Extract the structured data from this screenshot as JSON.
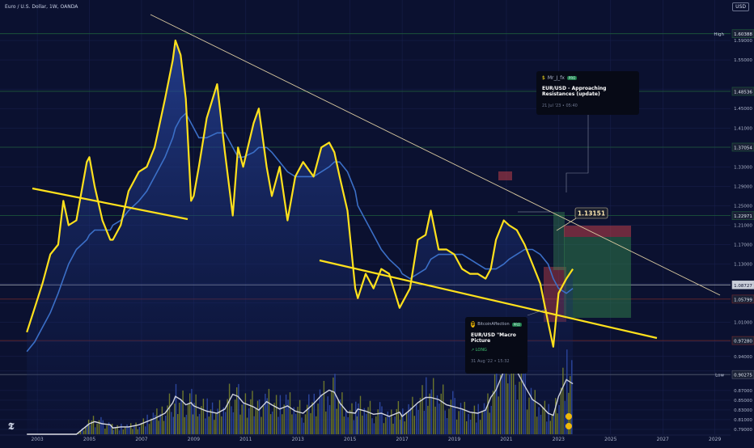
{
  "header": {
    "symbol_line": "Euro / U.S. Dollar, 1W, OANDA",
    "currency": "USD"
  },
  "price_axis": {
    "ticks": [
      "1.59000",
      "1.55000",
      "1.49000",
      "1.45000",
      "1.41000",
      "1.37000",
      "1.33000",
      "1.29000",
      "1.25000",
      "1.21000",
      "1.17000",
      "1.13000",
      "1.09000",
      "1.05000",
      "1.01000",
      "0.97000",
      "0.94000",
      "0.91000",
      "0.87000",
      "0.85000",
      "0.83000",
      "0.81000",
      "0.79000"
    ],
    "ymin": 0.78,
    "ymax": 1.62
  },
  "markers": [
    {
      "label": "High",
      "value": "1.60388",
      "color": "#1e5c3a"
    },
    {
      "label": "",
      "value": "1.48536",
      "color": "#1e5c3a"
    },
    {
      "label": "",
      "value": "1.37054",
      "color": "#1e5c3a"
    },
    {
      "label": "",
      "value": "1.22971",
      "color": "#1e5c3a"
    },
    {
      "label": "",
      "value": "1.08727",
      "color": "#b7bcc8"
    },
    {
      "label": "",
      "value": "1.05799",
      "color": "#7a2a2a"
    },
    {
      "label": "",
      "value": "0.97280",
      "color": "#7a2a2a"
    },
    {
      "label": "Low",
      "value": "0.90275",
      "color": "#555c70"
    }
  ],
  "time_axis": {
    "labels": [
      "2003",
      "2005",
      "2007",
      "2009",
      "2011",
      "2013",
      "2015",
      "2017",
      "2019",
      "2021",
      "2023",
      "2025",
      "2027",
      "2029"
    ],
    "start_year": 2002.5,
    "end_year": 2029.6
  },
  "price_tag": "1.13151",
  "idea_top": {
    "user": "Mr_J_fx",
    "badge": "PRO",
    "title": "EUR/USD - Approaching Resistances (update)",
    "date": "21 Jul '23 • 05:40"
  },
  "idea_bottom": {
    "user": "BitcoinAffection",
    "badge": "PRO",
    "title": "EUR/USD \"Macro Picture",
    "tag": "↗ LONG",
    "date": "31 Aug '22 • 15:32"
  },
  "colors": {
    "bg": "#0b1130",
    "price": "#ffe11c",
    "ma": "#3b6fc7",
    "volume": "#9aa31e",
    "volume_line": "#ffffff",
    "trendline": "#d9c9a0",
    "support": "#ffe11c"
  },
  "chart_data": {
    "type": "line",
    "title": "Euro / U.S. Dollar, 1W, OANDA",
    "x": [
      2002.6,
      2002.9,
      2003.2,
      2003.5,
      2003.8,
      2004.0,
      2004.2,
      2004.5,
      2004.9,
      2005.0,
      2005.2,
      2005.5,
      2005.8,
      2005.9,
      2006.2,
      2006.5,
      2006.9,
      2007.2,
      2007.5,
      2007.9,
      2008.2,
      2008.3,
      2008.5,
      2008.7,
      2008.9,
      2009.0,
      2009.2,
      2009.5,
      2009.9,
      2010.2,
      2010.5,
      2010.7,
      2010.9,
      2011.3,
      2011.5,
      2011.8,
      2012.0,
      2012.3,
      2012.6,
      2012.9,
      2013.2,
      2013.6,
      2013.9,
      2014.2,
      2014.4,
      2014.6,
      2014.9,
      2015.2,
      2015.3,
      2015.6,
      2015.9,
      2016.2,
      2016.5,
      2016.9,
      2017.0,
      2017.3,
      2017.6,
      2017.9,
      2018.1,
      2018.4,
      2018.7,
      2019.0,
      2019.3,
      2019.6,
      2019.9,
      2020.2,
      2020.4,
      2020.6,
      2020.9,
      2021.1,
      2021.4,
      2021.7,
      2022.0,
      2022.3,
      2022.6,
      2022.8,
      2023.0,
      2023.3,
      2023.55
    ],
    "series": [
      {
        "values": [
          0.99,
          1.04,
          1.09,
          1.15,
          1.17,
          1.26,
          1.21,
          1.22,
          1.34,
          1.35,
          1.29,
          1.22,
          1.18,
          1.18,
          1.21,
          1.28,
          1.32,
          1.33,
          1.37,
          1.47,
          1.55,
          1.59,
          1.56,
          1.47,
          1.26,
          1.27,
          1.33,
          1.43,
          1.5,
          1.36,
          1.23,
          1.37,
          1.33,
          1.42,
          1.45,
          1.33,
          1.27,
          1.33,
          1.22,
          1.31,
          1.34,
          1.31,
          1.37,
          1.38,
          1.36,
          1.31,
          1.24,
          1.08,
          1.06,
          1.11,
          1.08,
          1.12,
          1.11,
          1.04,
          1.05,
          1.08,
          1.18,
          1.19,
          1.24,
          1.16,
          1.16,
          1.15,
          1.12,
          1.11,
          1.11,
          1.1,
          1.12,
          1.18,
          1.22,
          1.21,
          1.2,
          1.17,
          1.13,
          1.09,
          1.01,
          0.96,
          1.07,
          1.1,
          1.12
        ]
      },
      {
        "values": [
          0.95,
          0.97,
          1.0,
          1.03,
          1.07,
          1.1,
          1.13,
          1.16,
          1.18,
          1.19,
          1.2,
          1.2,
          1.2,
          1.21,
          1.22,
          1.24,
          1.26,
          1.28,
          1.31,
          1.35,
          1.39,
          1.41,
          1.43,
          1.44,
          1.42,
          1.41,
          1.39,
          1.39,
          1.4,
          1.4,
          1.37,
          1.35,
          1.35,
          1.36,
          1.37,
          1.37,
          1.36,
          1.34,
          1.32,
          1.31,
          1.31,
          1.31,
          1.32,
          1.33,
          1.34,
          1.34,
          1.32,
          1.28,
          1.25,
          1.22,
          1.19,
          1.16,
          1.14,
          1.12,
          1.11,
          1.1,
          1.11,
          1.12,
          1.14,
          1.15,
          1.15,
          1.15,
          1.15,
          1.14,
          1.13,
          1.12,
          1.12,
          1.12,
          1.13,
          1.14,
          1.15,
          1.16,
          1.16,
          1.15,
          1.13,
          1.1,
          1.08,
          1.07,
          1.08
        ]
      }
    ],
    "volume": [
      0,
      0,
      0,
      0,
      0,
      0,
      0,
      0,
      0.08,
      0.1,
      0.12,
      0.1,
      0.09,
      0.06,
      0.07,
      0.07,
      0.09,
      0.12,
      0.15,
      0.2,
      0.3,
      0.36,
      0.33,
      0.28,
      0.3,
      0.27,
      0.25,
      0.22,
      0.2,
      0.24,
      0.38,
      0.36,
      0.3,
      0.26,
      0.23,
      0.31,
      0.28,
      0.24,
      0.27,
      0.22,
      0.2,
      0.29,
      0.37,
      0.42,
      0.4,
      0.3,
      0.21,
      0.2,
      0.24,
      0.22,
      0.19,
      0.2,
      0.17,
      0.21,
      0.17,
      0.23,
      0.3,
      0.35,
      0.35,
      0.33,
      0.28,
      0.26,
      0.24,
      0.21,
      0.2,
      0.23,
      0.35,
      0.42,
      0.6,
      0.64,
      0.6,
      0.46,
      0.33,
      0.28,
      0.2,
      0.18,
      0.36,
      0.52,
      0.48
    ]
  }
}
